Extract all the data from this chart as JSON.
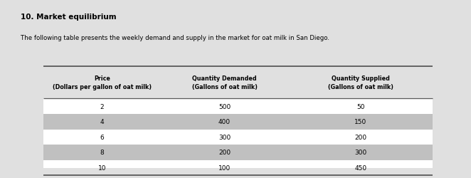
{
  "title": "10. Market equilibrium",
  "subtitle": "The following table presents the weekly demand and supply in the market for oat milk in San Diego.",
  "col_headers": [
    "Price\n(Dollars per gallon of oat milk)",
    "Quantity Demanded\n(Gallons of oat milk)",
    "Quantity Supplied\n(Gallons of oat milk)"
  ],
  "rows": [
    [
      "2",
      "500",
      "50"
    ],
    [
      "4",
      "400",
      "150"
    ],
    [
      "6",
      "300",
      "200"
    ],
    [
      "8",
      "200",
      "300"
    ],
    [
      "10",
      "100",
      "450"
    ]
  ],
  "white_row_color": "#ffffff",
  "shaded_row_color": "#c0c0c0",
  "fig_bg": "#e0e0e0",
  "line_color": "#5a5a5a"
}
